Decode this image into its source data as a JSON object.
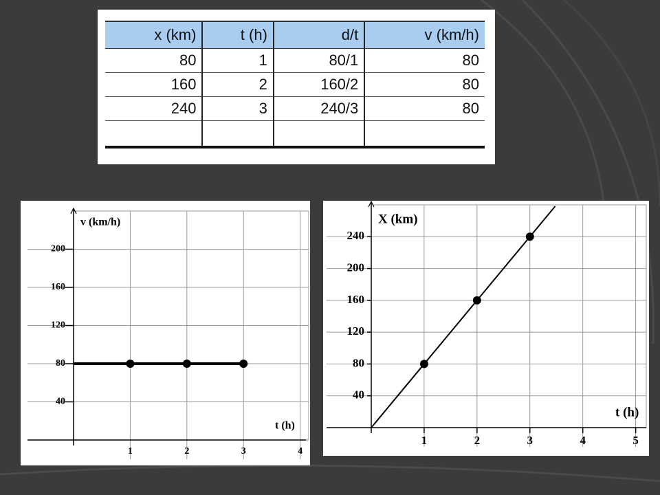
{
  "table": {
    "header": [
      "x (km)",
      "t (h)",
      "d/t",
      "v (km/h)"
    ],
    "rows": [
      [
        80,
        1,
        "80/1",
        80
      ],
      [
        160,
        2,
        "160/2",
        80
      ],
      [
        240,
        3,
        "240/3",
        80
      ]
    ]
  },
  "chart_data": [
    {
      "type": "line",
      "x_label": "t (h)",
      "y_label": "v (km/h)",
      "x": [
        1,
        2,
        3
      ],
      "values": [
        80,
        80,
        80
      ],
      "color": "#000000",
      "line_width": 4,
      "extend": "left",
      "xlim": [
        0,
        4.15
      ],
      "ylim": [
        0,
        240
      ],
      "xticks": [
        1,
        2,
        3,
        4
      ],
      "yticks": [
        40,
        80,
        120,
        160,
        200
      ],
      "grid": true
    },
    {
      "type": "line",
      "x_label": "t (h)",
      "y_label": "X (km)",
      "x": [
        0,
        1,
        2,
        3
      ],
      "values": [
        0,
        80,
        160,
        240
      ],
      "color": "#000000",
      "line_width": 2,
      "extend": "right",
      "xlim": [
        0,
        5.2
      ],
      "ylim": [
        0,
        280
      ],
      "xticks": [
        1,
        2,
        3,
        4,
        5
      ],
      "yticks": [
        40,
        80,
        120,
        160,
        200,
        240
      ],
      "grid": true
    }
  ]
}
